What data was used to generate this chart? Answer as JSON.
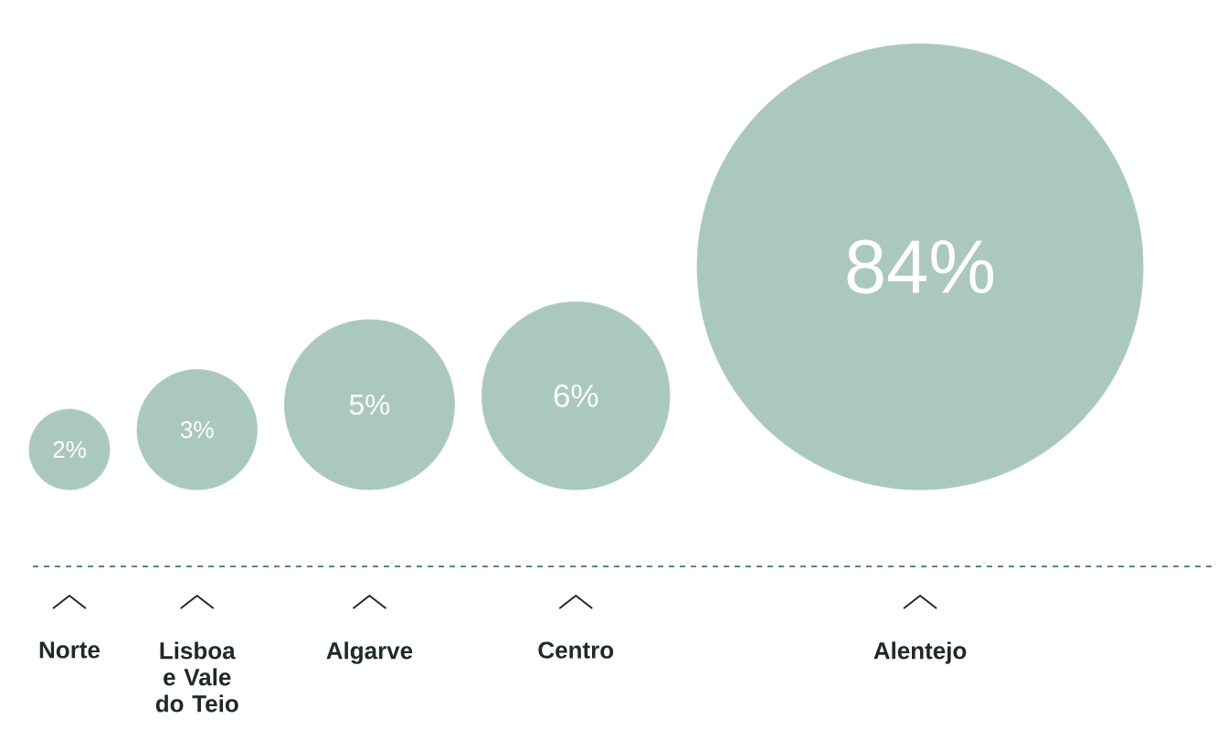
{
  "chart_data": {
    "type": "other",
    "categories": [
      "Norte",
      "Lisboa e Vale do Teio",
      "Algarve",
      "Centro",
      "Alentejo"
    ],
    "values": [
      2,
      3,
      5,
      6,
      84
    ],
    "value_labels": [
      "2%",
      "3%",
      "5%",
      "6%",
      "84%"
    ],
    "color": "#abc8bc"
  }
}
